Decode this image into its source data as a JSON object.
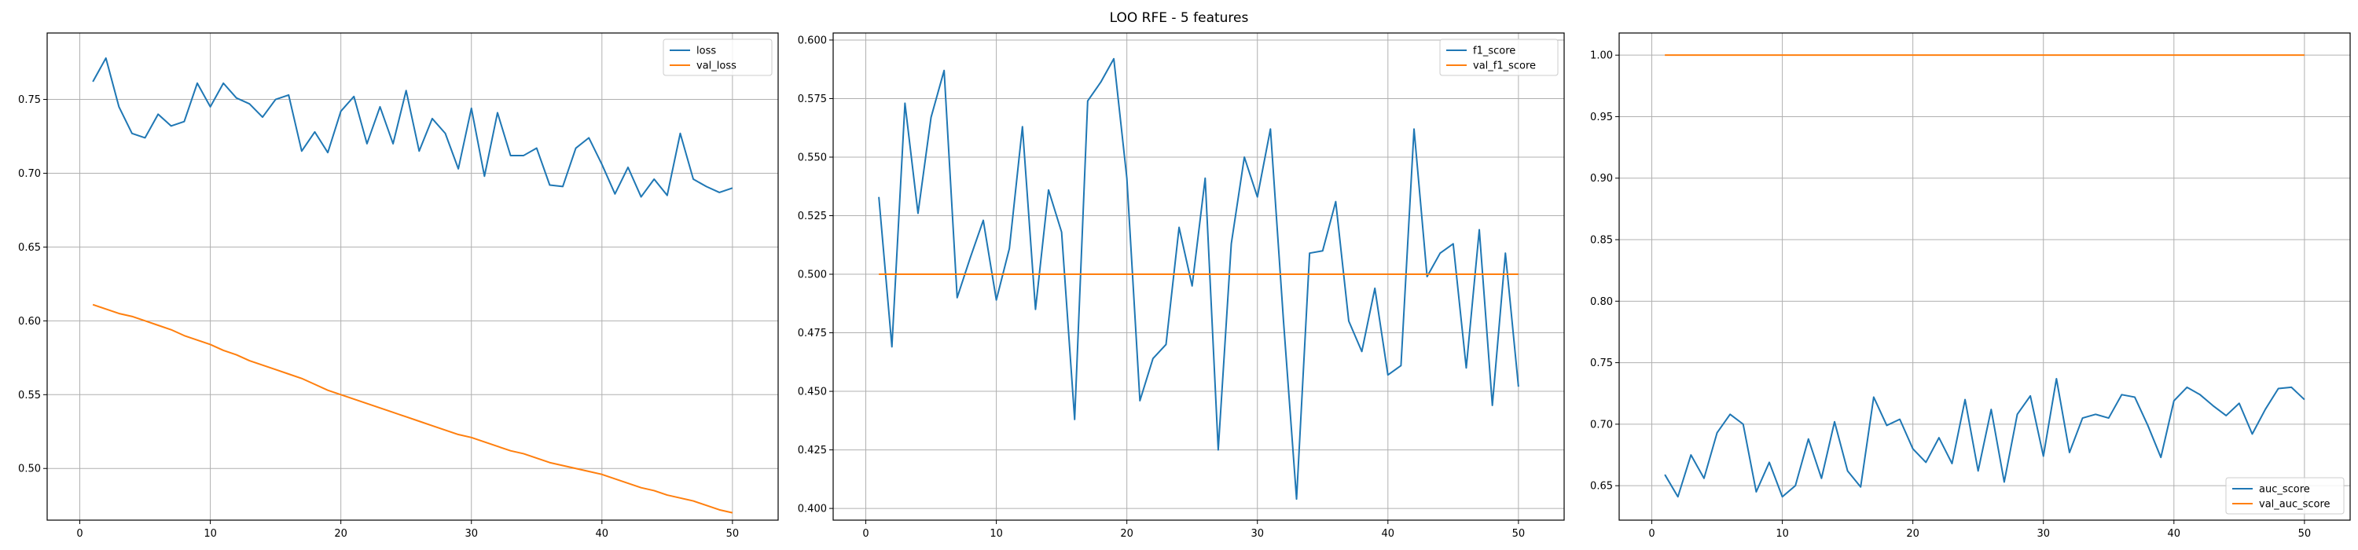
{
  "figure": {
    "title": "LOO RFE - 5 features"
  },
  "chart_data": [
    {
      "type": "line",
      "title": "",
      "xlabel": "",
      "ylabel": "",
      "xlim": [
        -2.5,
        53.5
      ],
      "ylim": [
        0.465,
        0.795
      ],
      "xticks": [
        0,
        10,
        20,
        30,
        40,
        50
      ],
      "yticks": [
        0.5,
        0.55,
        0.6,
        0.65,
        0.7,
        0.75
      ],
      "grid": true,
      "legend_position": "top-right",
      "series": [
        {
          "name": "loss",
          "color": "#1f77b4",
          "x": [
            1,
            2,
            3,
            4,
            5,
            6,
            7,
            8,
            9,
            10,
            11,
            12,
            13,
            14,
            15,
            16,
            17,
            18,
            19,
            20,
            21,
            22,
            23,
            24,
            25,
            26,
            27,
            28,
            29,
            30,
            31,
            32,
            33,
            34,
            35,
            36,
            37,
            38,
            39,
            40,
            41,
            42,
            43,
            44,
            45,
            46,
            47,
            48,
            49,
            50
          ],
          "values": [
            0.762,
            0.778,
            0.745,
            0.727,
            0.724,
            0.74,
            0.732,
            0.735,
            0.761,
            0.745,
            0.761,
            0.751,
            0.747,
            0.738,
            0.75,
            0.753,
            0.715,
            0.728,
            0.714,
            0.742,
            0.752,
            0.72,
            0.745,
            0.72,
            0.756,
            0.715,
            0.737,
            0.727,
            0.703,
            0.744,
            0.698,
            0.741,
            0.712,
            0.712,
            0.717,
            0.692,
            0.691,
            0.717,
            0.724,
            0.706,
            0.686,
            0.704,
            0.684,
            0.696,
            0.685,
            0.727,
            0.696,
            0.691,
            0.687,
            0.69
          ]
        },
        {
          "name": "val_loss",
          "color": "#ff7f0e",
          "x": [
            1,
            2,
            3,
            4,
            5,
            6,
            7,
            8,
            9,
            10,
            11,
            12,
            13,
            14,
            15,
            16,
            17,
            18,
            19,
            20,
            21,
            22,
            23,
            24,
            25,
            26,
            27,
            28,
            29,
            30,
            31,
            32,
            33,
            34,
            35,
            36,
            37,
            38,
            39,
            40,
            41,
            42,
            43,
            44,
            45,
            46,
            47,
            48,
            49,
            50
          ],
          "values": [
            0.611,
            0.608,
            0.605,
            0.603,
            0.6,
            0.597,
            0.594,
            0.59,
            0.587,
            0.584,
            0.58,
            0.577,
            0.573,
            0.57,
            0.567,
            0.564,
            0.561,
            0.557,
            0.553,
            0.55,
            0.547,
            0.544,
            0.541,
            0.538,
            0.535,
            0.532,
            0.529,
            0.526,
            0.523,
            0.521,
            0.518,
            0.515,
            0.512,
            0.51,
            0.507,
            0.504,
            0.502,
            0.5,
            0.498,
            0.496,
            0.493,
            0.49,
            0.487,
            0.485,
            0.482,
            0.48,
            0.478,
            0.475,
            0.472,
            0.47
          ]
        }
      ]
    },
    {
      "type": "line",
      "title": "",
      "xlabel": "",
      "ylabel": "",
      "xlim": [
        -2.5,
        53.5
      ],
      "ylim": [
        0.395,
        0.603
      ],
      "xticks": [
        0,
        10,
        20,
        30,
        40,
        50
      ],
      "yticks": [
        0.4,
        0.425,
        0.45,
        0.475,
        0.5,
        0.525,
        0.55,
        0.575,
        0.6
      ],
      "grid": true,
      "legend_position": "top-right",
      "series": [
        {
          "name": "f1_score",
          "color": "#1f77b4",
          "x": [
            1,
            2,
            3,
            4,
            5,
            6,
            7,
            8,
            9,
            10,
            11,
            12,
            13,
            14,
            15,
            16,
            17,
            18,
            19,
            20,
            21,
            22,
            23,
            24,
            25,
            26,
            27,
            28,
            29,
            30,
            31,
            32,
            33,
            34,
            35,
            36,
            37,
            38,
            39,
            40,
            41,
            42,
            43,
            44,
            45,
            46,
            47,
            48,
            49,
            50
          ],
          "values": [
            0.533,
            0.469,
            0.573,
            0.526,
            0.567,
            0.587,
            0.49,
            0.507,
            0.523,
            0.489,
            0.511,
            0.563,
            0.485,
            0.536,
            0.518,
            0.438,
            0.574,
            0.582,
            0.592,
            0.541,
            0.446,
            0.464,
            0.47,
            0.52,
            0.495,
            0.541,
            0.425,
            0.513,
            0.55,
            0.533,
            0.562,
            0.48,
            0.404,
            0.509,
            0.51,
            0.531,
            0.48,
            0.467,
            0.494,
            0.457,
            0.461,
            0.562,
            0.499,
            0.509,
            0.513,
            0.46,
            0.519,
            0.444,
            0.509,
            0.452
          ]
        },
        {
          "name": "val_f1_score",
          "color": "#ff7f0e",
          "x": [
            1,
            50
          ],
          "values": [
            0.5,
            0.5
          ]
        }
      ]
    },
    {
      "type": "line",
      "title": "",
      "xlabel": "",
      "ylabel": "",
      "xlim": [
        -2.5,
        53.5
      ],
      "ylim": [
        0.622,
        1.018
      ],
      "xticks": [
        0,
        10,
        20,
        30,
        40,
        50
      ],
      "yticks": [
        0.65,
        0.7,
        0.75,
        0.8,
        0.85,
        0.9,
        0.95,
        1.0
      ],
      "grid": true,
      "legend_position": "bottom-right",
      "series": [
        {
          "name": "auc_score",
          "color": "#1f77b4",
          "x": [
            1,
            2,
            3,
            4,
            5,
            6,
            7,
            8,
            9,
            10,
            11,
            12,
            13,
            14,
            15,
            16,
            17,
            18,
            19,
            20,
            21,
            22,
            23,
            24,
            25,
            26,
            27,
            28,
            29,
            30,
            31,
            32,
            33,
            34,
            35,
            36,
            37,
            38,
            39,
            40,
            41,
            42,
            43,
            44,
            45,
            46,
            47,
            48,
            49,
            50
          ],
          "values": [
            0.659,
            0.641,
            0.675,
            0.656,
            0.693,
            0.708,
            0.7,
            0.645,
            0.669,
            0.641,
            0.65,
            0.688,
            0.656,
            0.702,
            0.662,
            0.649,
            0.722,
            0.699,
            0.704,
            0.68,
            0.669,
            0.689,
            0.668,
            0.72,
            0.662,
            0.712,
            0.653,
            0.708,
            0.723,
            0.674,
            0.737,
            0.677,
            0.705,
            0.708,
            0.705,
            0.724,
            0.722,
            0.699,
            0.673,
            0.719,
            0.73,
            0.724,
            0.715,
            0.707,
            0.717,
            0.692,
            0.712,
            0.729,
            0.73,
            0.72
          ]
        },
        {
          "name": "val_auc_score",
          "color": "#ff7f0e",
          "x": [
            1,
            50
          ],
          "values": [
            1.0,
            1.0
          ]
        }
      ]
    }
  ]
}
